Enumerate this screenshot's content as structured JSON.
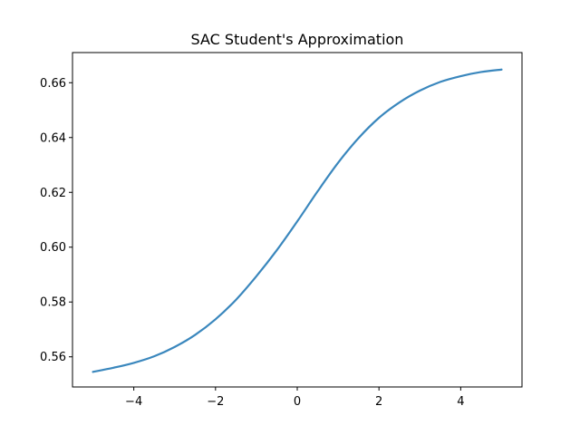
{
  "chart_data": {
    "type": "line",
    "title": "SAC Student's Approximation",
    "xlabel": "",
    "ylabel": "",
    "xlim": [
      -5.5,
      5.5
    ],
    "ylim": [
      0.549,
      0.671
    ],
    "xticks": [
      -4,
      -2,
      0,
      2,
      4
    ],
    "xtick_labels": [
      "−4",
      "−2",
      "0",
      "2",
      "4"
    ],
    "yticks": [
      0.56,
      0.58,
      0.6,
      0.62,
      0.64,
      0.66
    ],
    "ytick_labels": [
      "0.56",
      "0.58",
      "0.60",
      "0.62",
      "0.64",
      "0.66"
    ],
    "grid": false,
    "line_color": "#3a87bd",
    "series": [
      {
        "x": [
          -5,
          -4.5,
          -4,
          -3.5,
          -3,
          -2.5,
          -2,
          -1.5,
          -1,
          -0.5,
          0,
          0.5,
          1,
          1.5,
          2,
          2.5,
          3,
          3.5,
          4,
          4.5,
          5
        ],
        "values": [
          0.5545,
          0.556,
          0.5578,
          0.5602,
          0.5636,
          0.568,
          0.5737,
          0.5808,
          0.5894,
          0.5989,
          0.6094,
          0.6204,
          0.6308,
          0.6398,
          0.6472,
          0.6528,
          0.6571,
          0.6603,
          0.6624,
          0.6639,
          0.6648
        ]
      }
    ]
  }
}
